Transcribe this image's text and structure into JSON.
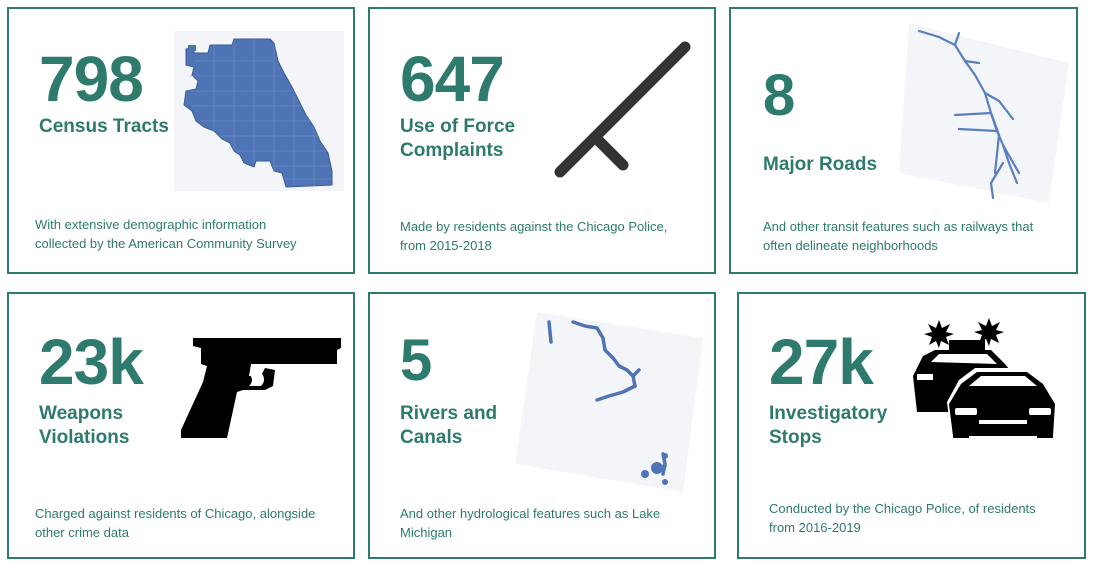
{
  "cards": [
    {
      "value": "798",
      "label_lines": [
        "Census Tracts"
      ],
      "description_lines": [
        "With extensive demographic information",
        "collected by the American Community Survey"
      ],
      "icon": "chicago-tracts-map-icon"
    },
    {
      "value": "647",
      "label_lines": [
        "Use of Force",
        "Complaints"
      ],
      "description_lines": [
        "Made by residents against the Chicago Police,",
        "from 2015-2018"
      ],
      "icon": "baton-icon"
    },
    {
      "value": "8",
      "label_lines": [
        "Major Roads"
      ],
      "description_lines": [
        "And other transit features such as railways that",
        "often delineate neighborhoods"
      ],
      "icon": "roads-map-icon"
    },
    {
      "value": "23k",
      "label_lines": [
        "Weapons",
        "Violations"
      ],
      "description_lines": [
        "Charged against residents of Chicago, alongside",
        "other crime data"
      ],
      "icon": "handgun-icon"
    },
    {
      "value": "5",
      "label_lines": [
        "Rivers and",
        "Canals"
      ],
      "description_lines": [
        "And other hydrological features such as Lake",
        "Michigan"
      ],
      "icon": "rivers-map-icon"
    },
    {
      "value": "27k",
      "label_lines": [
        "Investigatory",
        "Stops"
      ],
      "description_lines": [
        "Conducted by the Chicago Police, of residents",
        "from 2016-2019"
      ],
      "icon": "police-cars-icon"
    }
  ],
  "colors": {
    "accent": "#2e7a6d",
    "map_fill": "#4f74b5",
    "icon_dark": "#000000",
    "baton": "#333333"
  }
}
